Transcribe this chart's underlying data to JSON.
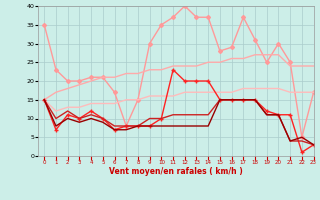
{
  "xlabel": "Vent moyen/en rafales ( km/h )",
  "background_color": "#cceee8",
  "grid_color": "#aacccc",
  "xlim": [
    -0.5,
    23
  ],
  "ylim": [
    0,
    40
  ],
  "yticks": [
    0,
    5,
    10,
    15,
    20,
    25,
    30,
    35,
    40
  ],
  "xticks": [
    0,
    1,
    2,
    3,
    4,
    5,
    6,
    7,
    8,
    9,
    10,
    11,
    12,
    13,
    14,
    15,
    16,
    17,
    18,
    19,
    20,
    21,
    22,
    23
  ],
  "series": [
    {
      "x": [
        0,
        1,
        2,
        3,
        4,
        5,
        6,
        7,
        8,
        9,
        10,
        11,
        12,
        13,
        14,
        15,
        16,
        17,
        18,
        19,
        20,
        21,
        22,
        23
      ],
      "y": [
        35,
        23,
        20,
        20,
        21,
        21,
        17,
        8,
        15,
        30,
        35,
        37,
        40,
        37,
        37,
        28,
        29,
        37,
        31,
        25,
        30,
        25,
        5,
        17
      ],
      "color": "#ff9999",
      "lw": 1.0,
      "marker": "D",
      "ms": 2.0
    },
    {
      "x": [
        0,
        1,
        2,
        3,
        4,
        5,
        6,
        7,
        8,
        9,
        10,
        11,
        12,
        13,
        14,
        15,
        16,
        17,
        18,
        19,
        20,
        21,
        22,
        23
      ],
      "y": [
        15,
        17,
        18,
        19,
        20,
        21,
        21,
        22,
        22,
        23,
        23,
        24,
        24,
        24,
        25,
        25,
        26,
        26,
        27,
        27,
        27,
        24,
        24,
        24
      ],
      "color": "#ffaaaa",
      "lw": 1.0,
      "marker": null,
      "ms": 0
    },
    {
      "x": [
        0,
        1,
        2,
        3,
        4,
        5,
        6,
        7,
        8,
        9,
        10,
        11,
        12,
        13,
        14,
        15,
        16,
        17,
        18,
        19,
        20,
        21,
        22,
        23
      ],
      "y": [
        15,
        12,
        13,
        13,
        14,
        14,
        14,
        15,
        15,
        16,
        16,
        16,
        17,
        17,
        17,
        17,
        17,
        18,
        18,
        18,
        18,
        17,
        17,
        17
      ],
      "color": "#ffbbbb",
      "lw": 1.0,
      "marker": null,
      "ms": 0
    },
    {
      "x": [
        0,
        1,
        2,
        3,
        4,
        5,
        6,
        7,
        8,
        9,
        10,
        11,
        12,
        13,
        14,
        15,
        16,
        17,
        18,
        19,
        20,
        21,
        22,
        23
      ],
      "y": [
        15,
        7,
        11,
        10,
        12,
        10,
        7,
        8,
        8,
        8,
        10,
        23,
        20,
        20,
        20,
        15,
        15,
        15,
        15,
        12,
        11,
        11,
        1,
        3
      ],
      "color": "#ff2222",
      "lw": 1.0,
      "marker": "+",
      "ms": 3.0
    },
    {
      "x": [
        0,
        1,
        2,
        3,
        4,
        5,
        6,
        7,
        8,
        9,
        10,
        11,
        12,
        13,
        14,
        15,
        16,
        17,
        18,
        19,
        20,
        21,
        22,
        23
      ],
      "y": [
        15,
        10,
        12,
        10,
        11,
        10,
        8,
        8,
        8,
        10,
        10,
        11,
        11,
        11,
        11,
        15,
        15,
        15,
        15,
        11,
        11,
        4,
        4,
        3
      ],
      "color": "#cc2222",
      "lw": 1.0,
      "marker": null,
      "ms": 0
    },
    {
      "x": [
        0,
        1,
        2,
        3,
        4,
        5,
        6,
        7,
        8,
        9,
        10,
        11,
        12,
        13,
        14,
        15,
        16,
        17,
        18,
        19,
        20,
        21,
        22,
        23
      ],
      "y": [
        15,
        8,
        10,
        9,
        10,
        9,
        7,
        7,
        8,
        8,
        8,
        8,
        8,
        8,
        8,
        15,
        15,
        15,
        15,
        11,
        11,
        4,
        5,
        3
      ],
      "color": "#990000",
      "lw": 1.0,
      "marker": null,
      "ms": 0
    }
  ]
}
